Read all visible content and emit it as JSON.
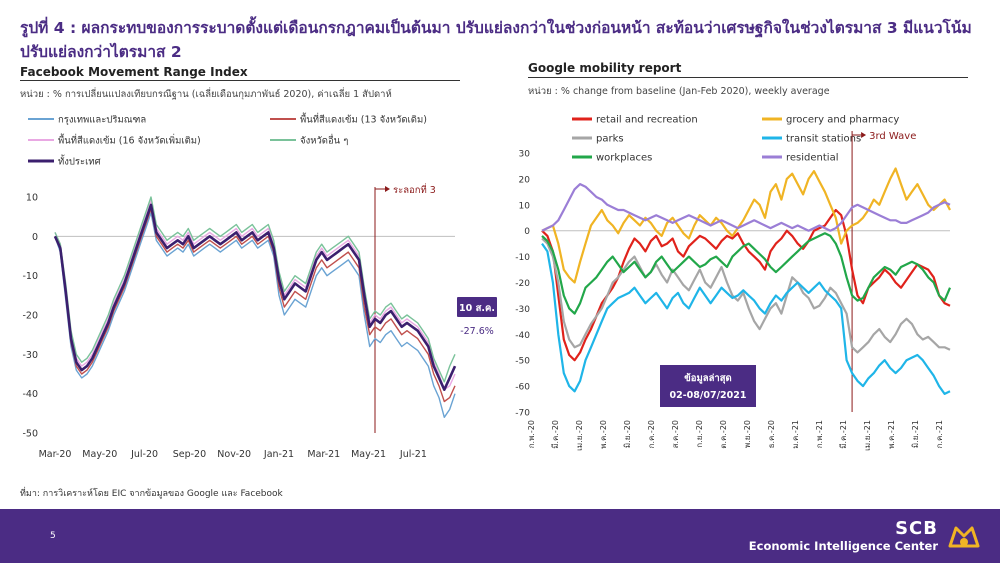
{
  "title": "รูปที่ 4 : ผลกระทบของการระบาดตั้งแต่เดือนกรกฎาคมเป็นต้นมา ปรับแย่ลงกว่าในช่วงก่อนหน้า สะท้อนว่าเศรษฐกิจในช่วงไตรมาส 3 มีแนวโน้มปรับแย่ลงกว่าไตรมาส 2",
  "source": "ที่มา: การวิเคราะห์โดย EIC จากข้อมูลของ Google และ Facebook",
  "page_number": "5",
  "footer": {
    "brand": "SCB",
    "subtitle": "Economic Intelligence Center"
  },
  "colors": {
    "accent": "#4b2c84",
    "marker": "#8b1a1a"
  },
  "chart_data": [
    {
      "type": "line",
      "title": "Facebook Movement Range Index",
      "unit": "หน่วย : % การเปลี่ยนแปลงเทียบกรณีฐาน (เฉลี่ยเดือนกุมภาพันธ์ 2020), ค่าเฉลี่ย 1 สัปดาห์",
      "ylim": [
        -50,
        10
      ],
      "yticks": [
        10,
        0,
        -10,
        -20,
        -30,
        -40,
        -50
      ],
      "x_labels": [
        "Mar-20",
        "May-20",
        "Jul-20",
        "Sep-20",
        "Nov-20",
        "Jan-21",
        "Mar-21",
        "May-21",
        "Jul-21"
      ],
      "legend": "top",
      "annotations": {
        "wave_label": "ระลอกที่ 3",
        "latest_date": "10 ส.ค.",
        "latest_value": "-27.6%"
      },
      "x": [
        0,
        1,
        2,
        3,
        4,
        5,
        6,
        7,
        8,
        9,
        10,
        11,
        12,
        13,
        14,
        15,
        16,
        17,
        18,
        19,
        20,
        21,
        22,
        23,
        24,
        25,
        26,
        27,
        28,
        29,
        30,
        31,
        32,
        33,
        34,
        35,
        36,
        37,
        38,
        39,
        40,
        41,
        42,
        43,
        44,
        45,
        46,
        47,
        48,
        49,
        50,
        51,
        52,
        53,
        54,
        55,
        56,
        57,
        58,
        59,
        60,
        61,
        62,
        63,
        64,
        65,
        66,
        67,
        68,
        69,
        70,
        71,
        72,
        73,
        74,
        75
      ],
      "series": [
        {
          "name": "กรุงเทพและปริมณฑล",
          "color": "#6aa3d3",
          "values": [
            0,
            -4,
            -16,
            -28,
            -34,
            -36,
            -35,
            -33,
            -30,
            -27,
            -24,
            -20,
            -17,
            -14,
            -10,
            -6,
            -2,
            2,
            6,
            -1,
            -3,
            -5,
            -4,
            -3,
            -4,
            -2,
            -5,
            -4,
            -3,
            -2,
            -3,
            -4,
            -3,
            -2,
            -1,
            -3,
            -2,
            -1,
            -3,
            -2,
            -1,
            -5,
            -15,
            -20,
            -18,
            -16,
            -17,
            -18,
            -14,
            -10,
            -8,
            -10,
            -9,
            -8,
            -7,
            -6,
            -8,
            -10,
            -20,
            -28,
            -26,
            -27,
            -25,
            -24,
            -26,
            -28,
            -27,
            -28,
            -29,
            -31,
            -33,
            -38,
            -41,
            -46,
            -44,
            -40
          ]
        },
        {
          "name": "พื้นที่สีแดงเข้ม (13 จังหวัดเดิม)",
          "color": "#c0504d",
          "values": [
            0,
            -3,
            -15,
            -27,
            -33,
            -35,
            -34,
            -32,
            -29,
            -26,
            -23,
            -19,
            -16,
            -13,
            -9,
            -5,
            -1,
            3,
            7,
            0,
            -2,
            -4,
            -3,
            -2,
            -3,
            -1,
            -4,
            -3,
            -2,
            -1,
            -2,
            -3,
            -2,
            -1,
            0,
            -2,
            -1,
            0,
            -2,
            -1,
            0,
            -4,
            -13,
            -18,
            -16,
            -14,
            -15,
            -16,
            -12,
            -8,
            -6,
            -8,
            -7,
            -6,
            -5,
            -4,
            -6,
            -8,
            -18,
            -25,
            -23,
            -24,
            -22,
            -21,
            -23,
            -25,
            -24,
            -25,
            -26,
            -28,
            -30,
            -35,
            -38,
            -42,
            -41,
            -38
          ]
        },
        {
          "name": "พื้นที่สีแดงเข้ม (16 จังหวัดเพิ่มเติม)",
          "color": "#e9a8e3",
          "values": [
            1,
            -2,
            -13,
            -25,
            -31,
            -33,
            -32,
            -30,
            -27,
            -24,
            -21,
            -17,
            -14,
            -11,
            -7,
            -3,
            1,
            5,
            9,
            2,
            0,
            -2,
            -1,
            0,
            -1,
            1,
            -2,
            -1,
            0,
            1,
            0,
            -1,
            0,
            1,
            2,
            0,
            1,
            2,
            0,
            1,
            2,
            -2,
            -10,
            -15,
            -13,
            -11,
            -12,
            -13,
            -9,
            -5,
            -3,
            -5,
            -4,
            -3,
            -2,
            -1,
            -3,
            -5,
            -14,
            -22,
            -20,
            -21,
            -19,
            -18,
            -20,
            -22,
            -21,
            -22,
            -23,
            -25,
            -27,
            -32,
            -35,
            -39,
            -38,
            -35
          ]
        },
        {
          "name": "จังหวัดอื่น ๆ",
          "color": "#7ac29a",
          "values": [
            1,
            -2,
            -12,
            -24,
            -30,
            -32,
            -31,
            -29,
            -26,
            -23,
            -20,
            -16,
            -13,
            -10,
            -6,
            -2,
            2,
            6,
            10,
            3,
            1,
            -1,
            0,
            1,
            0,
            2,
            -1,
            0,
            1,
            2,
            1,
            0,
            1,
            2,
            3,
            1,
            2,
            3,
            1,
            2,
            3,
            -1,
            -9,
            -14,
            -12,
            -10,
            -11,
            -12,
            -8,
            -4,
            -2,
            -4,
            -3,
            -2,
            -1,
            0,
            -2,
            -4,
            -13,
            -21,
            -19,
            -20,
            -18,
            -17,
            -19,
            -21,
            -20,
            -21,
            -22,
            -24,
            -26,
            -31,
            -34,
            -37,
            -33,
            -30
          ]
        },
        {
          "name": "ทั้งประเทศ",
          "color": "#3b1f6e",
          "values": [
            0,
            -3,
            -14,
            -26,
            -32,
            -34,
            -33,
            -31,
            -28,
            -25,
            -22,
            -18,
            -15,
            -12,
            -8,
            -4,
            0,
            4,
            8,
            1,
            -1,
            -3,
            -2,
            -1,
            -2,
            0,
            -3,
            -2,
            -1,
            0,
            -1,
            -2,
            -1,
            0,
            1,
            -1,
            0,
            1,
            -1,
            0,
            1,
            -3,
            -11,
            -16,
            -14,
            -12,
            -13,
            -14,
            -10,
            -6,
            -4,
            -6,
            -5,
            -4,
            -3,
            -2,
            -4,
            -6,
            -15,
            -23,
            -21,
            -22,
            -20,
            -19,
            -21,
            -23,
            -22,
            -23,
            -24,
            -26,
            -28,
            -33,
            -36,
            -39,
            -36,
            -33
          ]
        }
      ]
    },
    {
      "type": "line",
      "title": "Google mobility report",
      "unit": "หน่วย : % change from baseline (Jan-Feb 2020), weekly average",
      "ylim": [
        -70,
        30
      ],
      "yticks": [
        30,
        20,
        10,
        0,
        -10,
        -20,
        -30,
        -40,
        -50,
        -60,
        -70
      ],
      "x_labels": [
        "ก.พ.-20",
        "มี.ค.-20",
        "เม.ย.-20",
        "พ.ค.-20",
        "มิ.ย.-20",
        "ก.ค.-20",
        "ส.ค.-20",
        "ก.ย.-20",
        "ต.ค.-20",
        "พ.ย.-20",
        "ธ.ค.-20",
        "ม.ค.-21",
        "ก.พ.-21",
        "มี.ค.-21",
        "เม.ย.-21",
        "พ.ค.-21",
        "มิ.ย.-21",
        "ก.ค.-21"
      ],
      "legend": "top",
      "annotations": {
        "wave_label": "3rd Wave",
        "latest_box_line1": "ข้อมูลล่าสุด",
        "latest_box_line2": "02-08/07/2021"
      },
      "x": [
        0,
        1,
        2,
        3,
        4,
        5,
        6,
        7,
        8,
        9,
        10,
        11,
        12,
        13,
        14,
        15,
        16,
        17,
        18,
        19,
        20,
        21,
        22,
        23,
        24,
        25,
        26,
        27,
        28,
        29,
        30,
        31,
        32,
        33,
        34,
        35,
        36,
        37,
        38,
        39,
        40,
        41,
        42,
        43,
        44,
        45,
        46,
        47,
        48,
        49,
        50,
        51,
        52,
        53,
        54,
        55,
        56,
        57,
        58,
        59,
        60,
        61,
        62,
        63,
        64,
        65,
        66,
        67,
        68,
        69,
        70,
        71,
        72,
        73,
        74,
        75
      ],
      "series": [
        {
          "name": "retail and recreation",
          "color": "#e0221b",
          "values": [
            0,
            -2,
            -8,
            -25,
            -42,
            -48,
            -50,
            -47,
            -42,
            -38,
            -33,
            -28,
            -25,
            -22,
            -18,
            -12,
            -7,
            -3,
            -5,
            -8,
            -4,
            -2,
            -6,
            -5,
            -3,
            -8,
            -10,
            -6,
            -4,
            -2,
            -3,
            -5,
            -7,
            -4,
            -2,
            -3,
            -1,
            -5,
            -8,
            -10,
            -12,
            -15,
            -8,
            -5,
            -3,
            0,
            -2,
            -5,
            -7,
            -4,
            0,
            1,
            2,
            5,
            8,
            6,
            -2,
            -15,
            -25,
            -28,
            -22,
            -20,
            -18,
            -15,
            -17,
            -20,
            -22,
            -19,
            -16,
            -13,
            -14,
            -15,
            -18,
            -25,
            -28,
            -29
          ]
        },
        {
          "name": "grocery and pharmacy",
          "color": "#f0b424",
          "values": [
            0,
            1,
            2,
            -5,
            -15,
            -18,
            -20,
            -12,
            -5,
            2,
            5,
            8,
            4,
            2,
            -1,
            3,
            6,
            4,
            2,
            5,
            3,
            0,
            -2,
            3,
            5,
            2,
            -1,
            -3,
            2,
            6,
            4,
            2,
            5,
            3,
            0,
            -2,
            1,
            4,
            8,
            12,
            10,
            5,
            15,
            18,
            12,
            20,
            22,
            18,
            14,
            20,
            23,
            19,
            15,
            10,
            5,
            -5,
            0,
            2,
            3,
            5,
            8,
            12,
            10,
            15,
            20,
            24,
            18,
            12,
            15,
            18,
            14,
            10,
            8,
            10,
            12,
            8
          ]
        },
        {
          "name": "parks",
          "color": "#a6a6a6",
          "values": [
            -3,
            -5,
            -10,
            -20,
            -35,
            -42,
            -45,
            -44,
            -40,
            -36,
            -33,
            -30,
            -25,
            -20,
            -18,
            -15,
            -12,
            -10,
            -14,
            -18,
            -16,
            -13,
            -17,
            -20,
            -15,
            -18,
            -21,
            -23,
            -19,
            -15,
            -20,
            -22,
            -18,
            -14,
            -20,
            -25,
            -27,
            -24,
            -30,
            -35,
            -38,
            -34,
            -30,
            -28,
            -32,
            -25,
            -18,
            -20,
            -24,
            -26,
            -30,
            -29,
            -26,
            -22,
            -24,
            -28,
            -32,
            -45,
            -47,
            -45,
            -43,
            -40,
            -38,
            -41,
            -43,
            -40,
            -36,
            -34,
            -36,
            -40,
            -42,
            -41,
            -43,
            -45,
            -45,
            -46
          ]
        },
        {
          "name": "transit stations",
          "color": "#1fb5e8",
          "values": [
            -5,
            -8,
            -20,
            -40,
            -55,
            -60,
            -62,
            -58,
            -50,
            -45,
            -40,
            -35,
            -30,
            -28,
            -26,
            -25,
            -24,
            -22,
            -25,
            -28,
            -26,
            -24,
            -27,
            -30,
            -26,
            -24,
            -28,
            -30,
            -26,
            -22,
            -25,
            -28,
            -25,
            -22,
            -24,
            -26,
            -25,
            -23,
            -25,
            -27,
            -30,
            -32,
            -28,
            -25,
            -27,
            -24,
            -22,
            -20,
            -22,
            -24,
            -22,
            -20,
            -23,
            -25,
            -27,
            -30,
            -50,
            -55,
            -58,
            -60,
            -57,
            -55,
            -52,
            -50,
            -53,
            -55,
            -53,
            -50,
            -49,
            -48,
            -50,
            -53,
            -56,
            -60,
            -63,
            -62
          ]
        },
        {
          "name": "workplaces",
          "color": "#22a74a",
          "values": [
            -2,
            -4,
            -8,
            -15,
            -25,
            -30,
            -32,
            -28,
            -22,
            -20,
            -18,
            -15,
            -12,
            -10,
            -13,
            -16,
            -14,
            -12,
            -15,
            -18,
            -16,
            -12,
            -10,
            -13,
            -16,
            -14,
            -12,
            -10,
            -12,
            -14,
            -13,
            -11,
            -10,
            -12,
            -14,
            -10,
            -8,
            -6,
            -5,
            -7,
            -9,
            -11,
            -14,
            -16,
            -14,
            -12,
            -10,
            -8,
            -6,
            -4,
            -3,
            -2,
            -1,
            -2,
            -5,
            -10,
            -18,
            -25,
            -27,
            -26,
            -22,
            -18,
            -16,
            -14,
            -15,
            -17,
            -14,
            -13,
            -12,
            -13,
            -15,
            -18,
            -20,
            -25,
            -27,
            -22
          ]
        },
        {
          "name": "residential",
          "color": "#9b7ed6",
          "values": [
            0,
            1,
            2,
            4,
            8,
            12,
            16,
            18,
            17,
            15,
            13,
            12,
            10,
            9,
            8,
            8,
            7,
            6,
            5,
            4,
            5,
            6,
            5,
            4,
            3,
            4,
            5,
            6,
            5,
            4,
            3,
            2,
            3,
            4,
            3,
            2,
            1,
            2,
            3,
            4,
            3,
            2,
            1,
            2,
            3,
            2,
            1,
            2,
            1,
            0,
            1,
            2,
            1,
            0,
            1,
            3,
            6,
            9,
            10,
            9,
            8,
            7,
            6,
            5,
            4,
            4,
            3,
            3,
            4,
            5,
            6,
            7,
            9,
            10,
            11,
            10
          ]
        }
      ]
    }
  ]
}
